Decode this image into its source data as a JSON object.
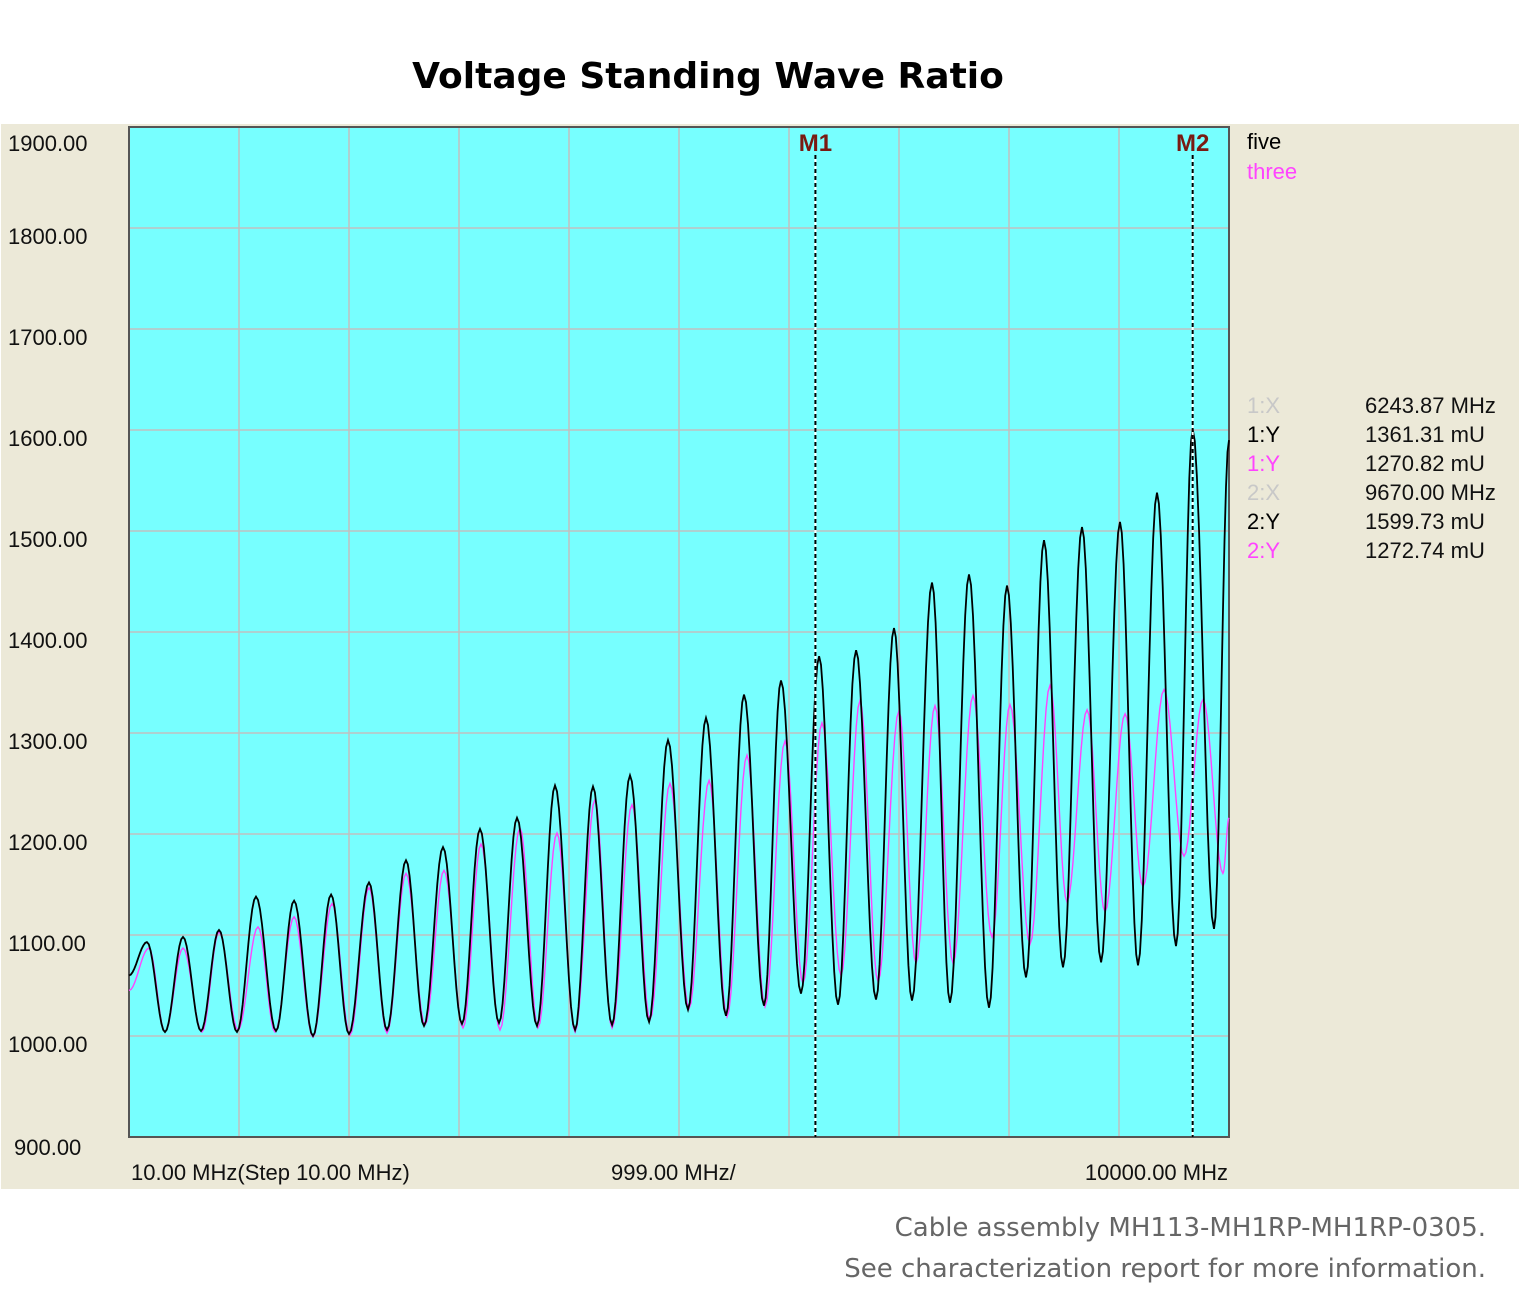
{
  "chart_data": {
    "type": "line",
    "title": "Voltage Standing Wave Ratio",
    "xlim": [
      10,
      10000
    ],
    "ylim": [
      900,
      1900
    ],
    "x_scale": "linear",
    "grid": true,
    "yticks": [
      "1900.00",
      "1800.00",
      "1700.00",
      "1600.00",
      "1500.00",
      "1400.00",
      "1300.00",
      "1200.00",
      "1100.00",
      "1000.00",
      "900.00"
    ],
    "xtick_labels": {
      "left": "10.00 MHz(Step 10.00 MHz)",
      "center": "999.00 MHz/",
      "right": "10000.00 MHz"
    },
    "legend_placement": "right",
    "colors": {
      "plot_bg": "#77FFFF",
      "panel_bg": "#ECE9D8",
      "grid": "#C0C0C0",
      "five": "#000000",
      "three": "#FF44FF",
      "marker": "#7A1A12"
    },
    "series": [
      {
        "name": "five",
        "x": [
          10,
          173,
          337,
          500,
          664,
          827,
          991,
          1163,
          1345,
          1509,
          1681,
          1845,
          2008,
          2190,
          2353,
          2526,
          2689,
          2862,
          3034,
          3198,
          3370,
          3534,
          3715,
          3879,
          4061,
          4224,
          4397,
          4560,
          4733,
          4905,
          5087,
          5250,
          5432,
          5595,
          5777,
          5931,
          6113,
          6277,
          6449,
          6613,
          6794,
          6958,
          7121,
          7303,
          7466,
          7639,
          7820,
          7984,
          8156,
          8320,
          8492,
          8665,
          8838,
          9010,
          9174,
          9346,
          9519,
          9670,
          9864,
          10000
        ],
        "y": [
          1060,
          1093,
          1004,
          1098,
          1005,
          1105,
          1004,
          1138,
          1005,
          1134,
          1000,
          1140,
          1002,
          1152,
          1006,
          1174,
          1010,
          1187,
          1012,
          1205,
          1013,
          1216,
          1010,
          1248,
          1006,
          1247,
          1011,
          1258,
          1014,
          1293,
          1026,
          1315,
          1020,
          1338,
          1030,
          1352,
          1042,
          1376,
          1031,
          1382,
          1036,
          1404,
          1035,
          1449,
          1033,
          1457,
          1028,
          1446,
          1058,
          1491,
          1068,
          1504,
          1073,
          1509,
          1070,
          1538,
          1089,
          1601,
          1106,
          1590
        ]
      },
      {
        "name": "three",
        "x": [
          10,
          192,
          337,
          500,
          673,
          827,
          1000,
          1182,
          1336,
          1509,
          1681,
          1854,
          2017,
          2190,
          2353,
          2526,
          2698,
          2871,
          3043,
          3207,
          3379,
          3561,
          3724,
          3897,
          4061,
          4242,
          4397,
          4578,
          4742,
          4923,
          5096,
          5278,
          5441,
          5623,
          5786,
          5968,
          6131,
          6304,
          6476,
          6649,
          6812,
          7003,
          7157,
          7330,
          7494,
          7675,
          7848,
          8011,
          8193,
          8374,
          8529,
          8711,
          8874,
          9056,
          9219,
          9410,
          9591,
          9764,
          9945,
          10000
        ],
        "y": [
          1045,
          1087,
          1004,
          1087,
          1004,
          1103,
          1006,
          1108,
          1004,
          1118,
          999,
          1131,
          1001,
          1147,
          1003,
          1161,
          1011,
          1164,
          1008,
          1190,
          1006,
          1206,
          1008,
          1201,
          1004,
          1234,
          1008,
          1229,
          1016,
          1250,
          1027,
          1253,
          1019,
          1278,
          1029,
          1292,
          1052,
          1310,
          1060,
          1332,
          1054,
          1322,
          1072,
          1327,
          1072,
          1337,
          1098,
          1328,
          1091,
          1347,
          1133,
          1323,
          1123,
          1319,
          1148,
          1343,
          1178,
          1333,
          1161,
          1216
        ]
      }
    ],
    "markers": [
      {
        "label": "M1",
        "x": 6243.87
      },
      {
        "label": "M2",
        "x": 9670.0
      }
    ]
  },
  "legend": [
    {
      "label": "five",
      "color": "#000000"
    },
    {
      "label": "three",
      "color": "#FF44FF"
    }
  ],
  "readout": [
    {
      "key": "1:X",
      "value": "6243.87 MHz",
      "color": "#C8C8C8"
    },
    {
      "key": "1:Y",
      "value": "1361.31 mU",
      "color": "#000000"
    },
    {
      "key": "1:Y",
      "value": "1270.82 mU",
      "color": "#FF44FF"
    },
    {
      "key": "2:X",
      "value": "9670.00 MHz",
      "color": "#C8C8C8"
    },
    {
      "key": "2:Y",
      "value": "1599.73 mU",
      "color": "#000000"
    },
    {
      "key": "2:Y",
      "value": "1272.74 mU",
      "color": "#FF44FF"
    }
  ],
  "footer": {
    "line1": "Cable assembly MH113-MH1RP-MH1RP-0305.",
    "line2": "See characterization report for more information."
  }
}
